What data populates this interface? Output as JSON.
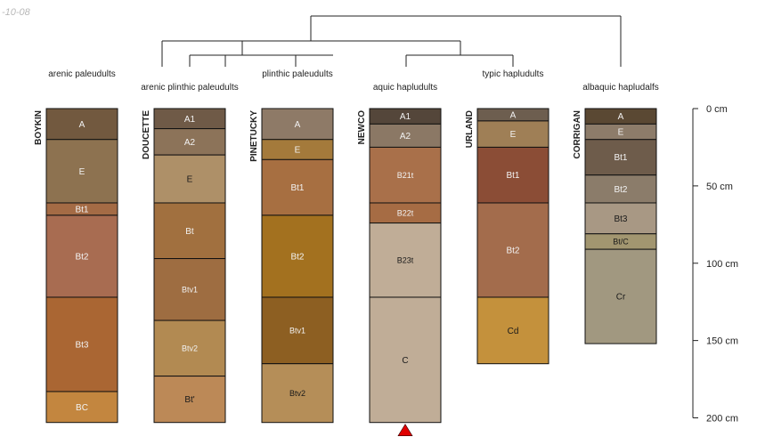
{
  "date_stamp": "-10-08",
  "depth_axis": {
    "unit": "cm",
    "max_depth": 200,
    "ticks": [
      {
        "value": 0,
        "label": "0  cm"
      },
      {
        "value": 50,
        "label": "50  cm"
      },
      {
        "value": 100,
        "label": "100  cm"
      },
      {
        "value": 150,
        "label": "150  cm"
      },
      {
        "value": 200,
        "label": "200  cm"
      }
    ]
  },
  "groups": [
    {
      "label": "arenic paleudults",
      "members": [
        "BOYKIN"
      ]
    },
    {
      "label": "arenic plinthic paleudults",
      "members": [
        "DOUCETTE"
      ]
    },
    {
      "label": "plinthic paleudults",
      "members": [
        "PINETUCKY"
      ]
    },
    {
      "label": "aquic hapludults",
      "members": [
        "NEWCO"
      ]
    },
    {
      "label": "typic hapludults",
      "members": [
        "URLAND"
      ]
    },
    {
      "label": "albaquic hapludalfs",
      "members": [
        "CORRIGAN"
      ]
    }
  ],
  "profiles": [
    {
      "name": "BOYKIN",
      "horizons": [
        {
          "name": "A",
          "top": 0,
          "bottom": 20,
          "color": "#72593f"
        },
        {
          "name": "E",
          "top": 20,
          "bottom": 61,
          "color": "#8d7250"
        },
        {
          "name": "Bt1",
          "top": 61,
          "bottom": 69,
          "color": "#a46b45"
        },
        {
          "name": "Bt2",
          "top": 69,
          "bottom": 122,
          "color": "#a86c51"
        },
        {
          "name": "Bt3",
          "top": 122,
          "bottom": 183,
          "color": "#aa6633"
        },
        {
          "name": "BC",
          "top": 183,
          "bottom": 203,
          "color": "#c3863f"
        }
      ]
    },
    {
      "name": "DOUCETTE",
      "horizons": [
        {
          "name": "A1",
          "top": 0,
          "bottom": 13,
          "color": "#6f5a47"
        },
        {
          "name": "A2",
          "top": 13,
          "bottom": 30,
          "color": "#8c7359"
        },
        {
          "name": "E",
          "top": 30,
          "bottom": 61,
          "color": "#ae9068"
        },
        {
          "name": "Bt",
          "top": 61,
          "bottom": 97,
          "color": "#a1703f"
        },
        {
          "name": "Btv1",
          "top": 97,
          "bottom": 137,
          "color": "#9e6d41"
        },
        {
          "name": "Btv2",
          "top": 137,
          "bottom": 173,
          "color": "#b28a52"
        },
        {
          "name": "Bt'",
          "top": 173,
          "bottom": 203,
          "color": "#bc8957"
        }
      ]
    },
    {
      "name": "PINETUCKY",
      "horizons": [
        {
          "name": "A",
          "top": 0,
          "bottom": 20,
          "color": "#8e7a67"
        },
        {
          "name": "E",
          "top": 20,
          "bottom": 33,
          "color": "#a47a3b"
        },
        {
          "name": "Bt1",
          "top": 33,
          "bottom": 69,
          "color": "#a76f41"
        },
        {
          "name": "Bt2",
          "top": 69,
          "bottom": 122,
          "color": "#a3711f"
        },
        {
          "name": "Btv1",
          "top": 122,
          "bottom": 165,
          "color": "#8d5f22"
        },
        {
          "name": "Btv2",
          "top": 165,
          "bottom": 203,
          "color": "#b58e58"
        }
      ]
    },
    {
      "name": "NEWCO",
      "horizons": [
        {
          "name": "A1",
          "top": 0,
          "bottom": 10,
          "color": "#54463a"
        },
        {
          "name": "A2",
          "top": 10,
          "bottom": 25,
          "color": "#8b7865"
        },
        {
          "name": "B21t",
          "top": 25,
          "bottom": 61,
          "color": "#a9704a"
        },
        {
          "name": "B22t",
          "top": 61,
          "bottom": 74,
          "color": "#a66c44"
        },
        {
          "name": "B23t",
          "top": 74,
          "bottom": 122,
          "color": "#c0ad97"
        },
        {
          "name": "C",
          "top": 122,
          "bottom": 203,
          "color": "#c0ad97"
        }
      ]
    },
    {
      "name": "URLAND",
      "horizons": [
        {
          "name": "A",
          "top": 0,
          "bottom": 8,
          "color": "#6d5e4f"
        },
        {
          "name": "E",
          "top": 8,
          "bottom": 25,
          "color": "#9f7f56"
        },
        {
          "name": "Bt1",
          "top": 25,
          "bottom": 61,
          "color": "#8b4d36"
        },
        {
          "name": "Bt2",
          "top": 61,
          "bottom": 122,
          "color": "#a36c4c"
        },
        {
          "name": "Cd",
          "top": 122,
          "bottom": 165,
          "color": "#c4913c"
        }
      ]
    },
    {
      "name": "CORRIGAN",
      "horizons": [
        {
          "name": "A",
          "top": 0,
          "bottom": 10,
          "color": "#5a4833"
        },
        {
          "name": "E",
          "top": 10,
          "bottom": 20,
          "color": "#8d7c6a"
        },
        {
          "name": "Bt1",
          "top": 20,
          "bottom": 43,
          "color": "#6e5c4b"
        },
        {
          "name": "Bt2",
          "top": 43,
          "bottom": 61,
          "color": "#8b7c6a"
        },
        {
          "name": "Bt3",
          "top": 61,
          "bottom": 81,
          "color": "#a89884"
        },
        {
          "name": "Bt/C",
          "top": 81,
          "bottom": 91,
          "color": "#a29670"
        },
        {
          "name": "Cr",
          "top": 91,
          "bottom": 152,
          "color": "#a19880"
        }
      ]
    }
  ],
  "truncation_marker": {
    "profile": "NEWCO",
    "color": "#e00000"
  }
}
